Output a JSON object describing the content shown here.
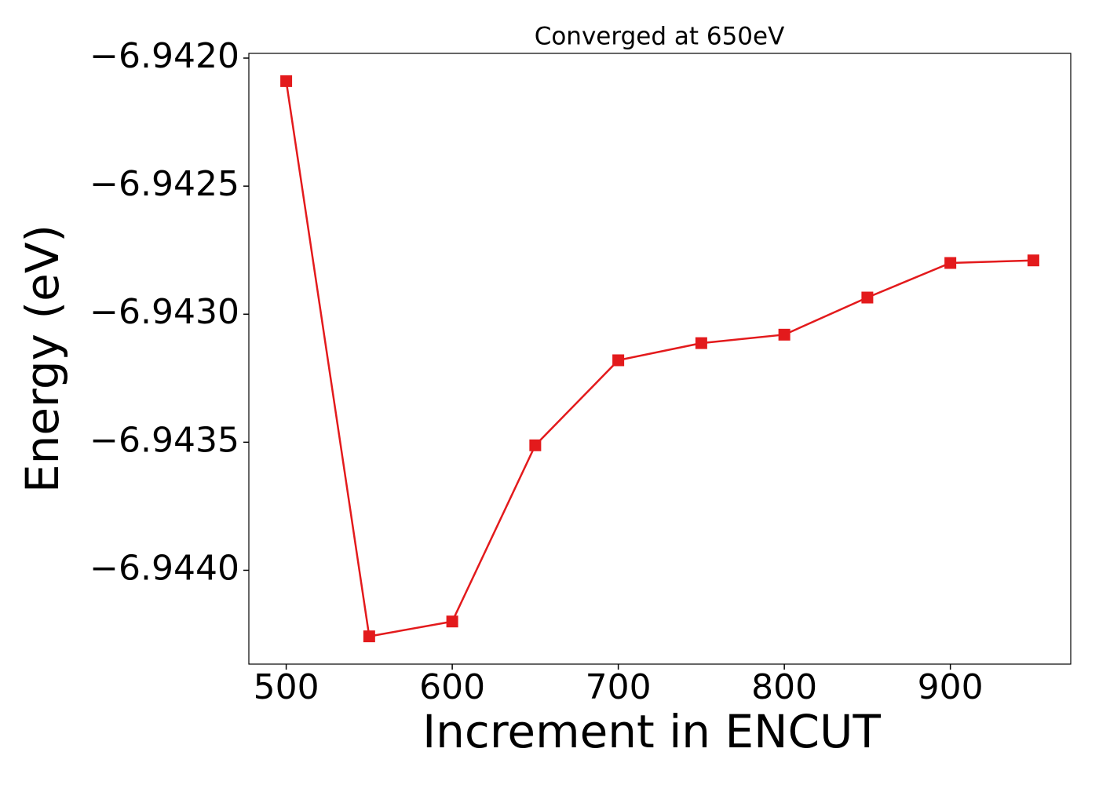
{
  "chart_data": {
    "type": "line",
    "title": "Converged at 650eV",
    "xlabel": "Increment in ENCUT",
    "ylabel": "Energy (eV)",
    "x": [
      500,
      550,
      600,
      650,
      700,
      750,
      800,
      850,
      900,
      950
    ],
    "series": [
      {
        "color": "#e31a1c",
        "marker": "square",
        "values": [
          -6.94209,
          -6.944258,
          -6.9442,
          -6.943512,
          -6.94318,
          -6.943113,
          -6.94308,
          -6.942935,
          -6.9428,
          -6.94279
        ]
      }
    ],
    "xlim": [
      477.5,
      972.5
    ],
    "ylim": [
      -6.9443664,
      -6.9419816
    ],
    "xticks": [
      500,
      600,
      700,
      800,
      900
    ],
    "yticks": [
      {
        "value": -6.944,
        "label": "−6.9440"
      },
      {
        "value": -6.9435,
        "label": "−6.9435"
      },
      {
        "value": -6.943,
        "label": "−6.9430"
      },
      {
        "value": -6.9425,
        "label": "−6.9425"
      },
      {
        "value": -6.942,
        "label": "−6.9420"
      }
    ],
    "grid": false
  }
}
